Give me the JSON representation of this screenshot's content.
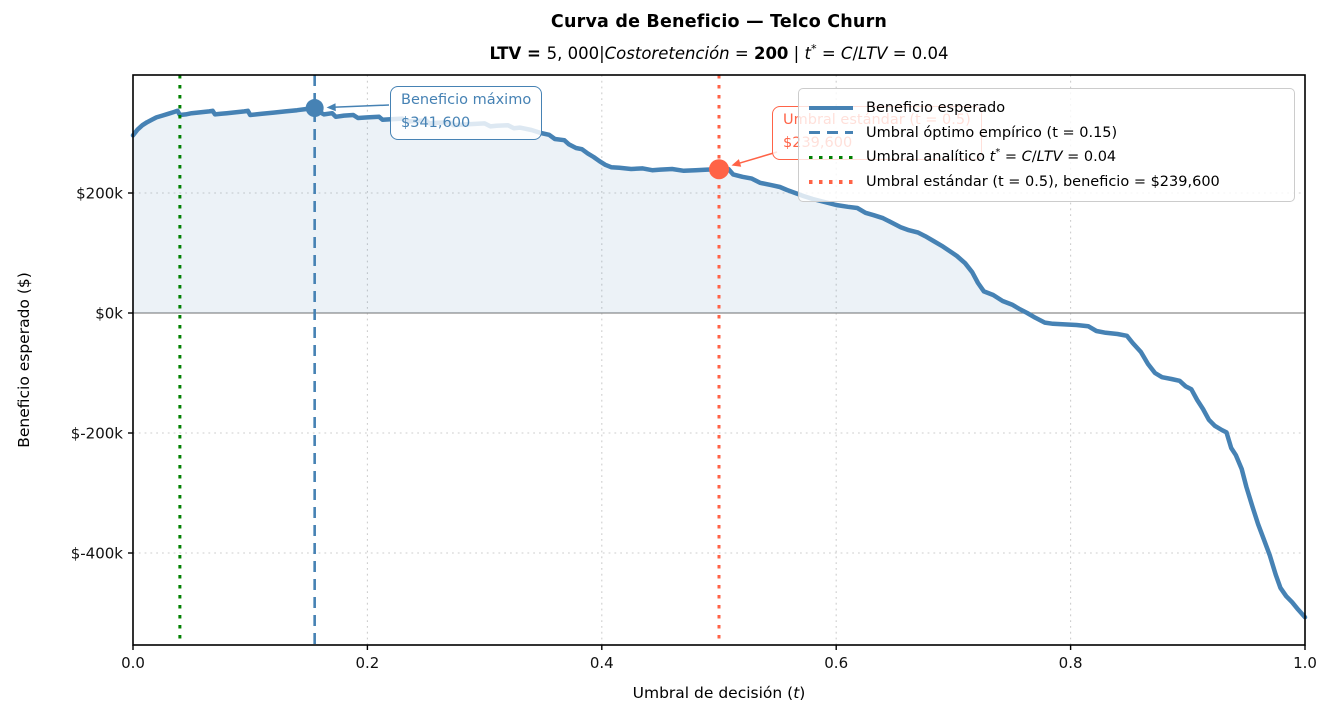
{
  "chart_data": {
    "type": "line",
    "title": "Curva de Beneficio — Telco Churn",
    "subtitle_plain": "LTV = 5,000 | Costo retención = 200  |  t* = C/LTV = 0.04",
    "subtitle_segments": [
      {
        "text": "LTV = ",
        "b": true
      },
      {
        "text": "5, 000"
      },
      {
        "text": "|"
      },
      {
        "text": "Costoretención",
        "i": true
      },
      {
        "text": " = "
      },
      {
        "text": "200",
        "b": true
      },
      {
        "text": "  |  "
      },
      {
        "text": "t",
        "i": true
      },
      {
        "text": "*",
        "sup": true
      },
      {
        "text": " = "
      },
      {
        "text": "C",
        "i": true
      },
      {
        "text": "/"
      },
      {
        "text": "LTV",
        "i": true
      },
      {
        "text": " = 0.04"
      }
    ],
    "xlabel_plain": "Umbral de decisión (t)",
    "xlabel_segments": [
      {
        "text": "Umbral de decisión ("
      },
      {
        "text": "t",
        "i": true
      },
      {
        "text": ")"
      }
    ],
    "ylabel": "Beneficio esperado ($)",
    "xlim": [
      0.0,
      1.0
    ],
    "ylim": [
      -553333,
      396667
    ],
    "grid": true,
    "x_ticks": [
      {
        "value": 0.0,
        "label": "0.0"
      },
      {
        "value": 0.2,
        "label": "0.2"
      },
      {
        "value": 0.4,
        "label": "0.4"
      },
      {
        "value": 0.6,
        "label": "0.6"
      },
      {
        "value": 0.8,
        "label": "0.8"
      },
      {
        "value": 1.0,
        "label": "1.0"
      }
    ],
    "y_ticks": [
      {
        "value": 200000,
        "label": "$200k"
      },
      {
        "value": 0,
        "label": "$0k"
      },
      {
        "value": -200000,
        "label": "$-200k"
      },
      {
        "value": -400000,
        "label": "$-400k"
      }
    ],
    "zero_line": {
      "value": 0,
      "color": "#8c8c8c"
    },
    "series": [
      {
        "name": "Beneficio esperado",
        "color": "#4682B4",
        "fill_color": "rgba(70,130,180,0.10)",
        "points": [
          [
            0.0,
            296000
          ],
          [
            0.004,
            306000
          ],
          [
            0.008,
            313000
          ],
          [
            0.012,
            318000
          ],
          [
            0.016,
            322000
          ],
          [
            0.02,
            326000
          ],
          [
            0.025,
            329000
          ],
          [
            0.03,
            332000
          ],
          [
            0.035,
            335000
          ],
          [
            0.038,
            337000
          ],
          [
            0.04,
            330000
          ],
          [
            0.045,
            331000
          ],
          [
            0.05,
            333000
          ],
          [
            0.055,
            334000
          ],
          [
            0.06,
            335000
          ],
          [
            0.065,
            336000
          ],
          [
            0.068,
            337000
          ],
          [
            0.07,
            331000
          ],
          [
            0.075,
            332000
          ],
          [
            0.08,
            333000
          ],
          [
            0.085,
            334000
          ],
          [
            0.09,
            335000
          ],
          [
            0.095,
            336000
          ],
          [
            0.098,
            337000
          ],
          [
            0.1,
            330000
          ],
          [
            0.105,
            331000
          ],
          [
            0.11,
            332000
          ],
          [
            0.12,
            334000
          ],
          [
            0.13,
            336000
          ],
          [
            0.14,
            338000
          ],
          [
            0.148,
            340000
          ],
          [
            0.155,
            341600
          ],
          [
            0.158,
            336000
          ],
          [
            0.163,
            331000
          ],
          [
            0.17,
            333000
          ],
          [
            0.173,
            327000
          ],
          [
            0.18,
            329000
          ],
          [
            0.188,
            330000
          ],
          [
            0.192,
            325000
          ],
          [
            0.2,
            326000
          ],
          [
            0.21,
            327000
          ],
          [
            0.213,
            322000
          ],
          [
            0.22,
            323000
          ],
          [
            0.23,
            324000
          ],
          [
            0.233,
            319000
          ],
          [
            0.24,
            320000
          ],
          [
            0.25,
            321000
          ],
          [
            0.253,
            316000
          ],
          [
            0.26,
            317000
          ],
          [
            0.27,
            318000
          ],
          [
            0.273,
            313000
          ],
          [
            0.28,
            314000
          ],
          [
            0.29,
            315000
          ],
          [
            0.3,
            316000
          ],
          [
            0.305,
            311000
          ],
          [
            0.31,
            312000
          ],
          [
            0.32,
            313000
          ],
          [
            0.325,
            308000
          ],
          [
            0.33,
            309000
          ],
          [
            0.34,
            305000
          ],
          [
            0.348,
            300000
          ],
          [
            0.355,
            297000
          ],
          [
            0.36,
            290000
          ],
          [
            0.368,
            288000
          ],
          [
            0.372,
            281000
          ],
          [
            0.378,
            275000
          ],
          [
            0.383,
            273000
          ],
          [
            0.388,
            266000
          ],
          [
            0.393,
            260000
          ],
          [
            0.398,
            253000
          ],
          [
            0.403,
            247000
          ],
          [
            0.408,
            243000
          ],
          [
            0.415,
            242000
          ],
          [
            0.425,
            240000
          ],
          [
            0.435,
            241000
          ],
          [
            0.443,
            238000
          ],
          [
            0.45,
            239000
          ],
          [
            0.46,
            240000
          ],
          [
            0.47,
            237000
          ],
          [
            0.48,
            238000
          ],
          [
            0.49,
            239000
          ],
          [
            0.5,
            239600
          ],
          [
            0.508,
            240000
          ],
          [
            0.512,
            231000
          ],
          [
            0.52,
            227000
          ],
          [
            0.528,
            224000
          ],
          [
            0.535,
            217000
          ],
          [
            0.545,
            213000
          ],
          [
            0.552,
            210000
          ],
          [
            0.558,
            205000
          ],
          [
            0.565,
            200000
          ],
          [
            0.572,
            195000
          ],
          [
            0.58,
            190000
          ],
          [
            0.59,
            185000
          ],
          [
            0.6,
            180000
          ],
          [
            0.61,
            177000
          ],
          [
            0.618,
            175000
          ],
          [
            0.625,
            167000
          ],
          [
            0.632,
            163000
          ],
          [
            0.64,
            158000
          ],
          [
            0.648,
            150000
          ],
          [
            0.655,
            143000
          ],
          [
            0.662,
            138000
          ],
          [
            0.67,
            134000
          ],
          [
            0.676,
            128000
          ],
          [
            0.683,
            120000
          ],
          [
            0.69,
            112000
          ],
          [
            0.697,
            103000
          ],
          [
            0.703,
            95000
          ],
          [
            0.71,
            83000
          ],
          [
            0.716,
            68000
          ],
          [
            0.721,
            50000
          ],
          [
            0.726,
            36000
          ],
          [
            0.734,
            30000
          ],
          [
            0.742,
            20000
          ],
          [
            0.75,
            14000
          ],
          [
            0.757,
            6000
          ],
          [
            0.763,
            0
          ],
          [
            0.77,
            -8000
          ],
          [
            0.778,
            -16000
          ],
          [
            0.785,
            -18000
          ],
          [
            0.795,
            -19000
          ],
          [
            0.805,
            -20000
          ],
          [
            0.815,
            -22000
          ],
          [
            0.822,
            -30000
          ],
          [
            0.83,
            -33000
          ],
          [
            0.84,
            -35000
          ],
          [
            0.848,
            -38000
          ],
          [
            0.853,
            -50000
          ],
          [
            0.86,
            -65000
          ],
          [
            0.866,
            -85000
          ],
          [
            0.872,
            -100000
          ],
          [
            0.878,
            -107000
          ],
          [
            0.886,
            -110000
          ],
          [
            0.893,
            -113000
          ],
          [
            0.898,
            -122000
          ],
          [
            0.903,
            -127000
          ],
          [
            0.908,
            -145000
          ],
          [
            0.913,
            -160000
          ],
          [
            0.918,
            -178000
          ],
          [
            0.923,
            -188000
          ],
          [
            0.929,
            -195000
          ],
          [
            0.933,
            -199000
          ],
          [
            0.937,
            -225000
          ],
          [
            0.941,
            -237000
          ],
          [
            0.946,
            -260000
          ],
          [
            0.95,
            -290000
          ],
          [
            0.955,
            -322000
          ],
          [
            0.96,
            -352000
          ],
          [
            0.965,
            -378000
          ],
          [
            0.97,
            -404000
          ],
          [
            0.975,
            -436000
          ],
          [
            0.979,
            -458000
          ],
          [
            0.984,
            -472000
          ],
          [
            0.989,
            -482000
          ],
          [
            0.994,
            -494000
          ],
          [
            1.0,
            -507000
          ]
        ]
      }
    ],
    "vlines": [
      {
        "id": "optimal",
        "x": 0.155,
        "color": "#4682B4",
        "style": "dashed",
        "label": "Umbral óptimo empírico (t = 0.15)"
      },
      {
        "id": "analytic",
        "x": 0.04,
        "color": "#008000",
        "style": "dotted",
        "label": "Umbral analítico t* = C/LTV = 0.04"
      },
      {
        "id": "standard",
        "x": 0.5,
        "color": "#FF6347",
        "style": "dotted",
        "label": "Umbral estándar (t = 0.5), beneficio = $239,600"
      }
    ],
    "markers": [
      {
        "id": "max",
        "t": 0.155,
        "profit": 341600,
        "color": "#4682B4",
        "radius": 9
      },
      {
        "id": "standard",
        "t": 0.5,
        "profit": 239600,
        "color": "#FF6347",
        "radius": 10
      }
    ],
    "annotations": [
      {
        "id": "max",
        "line1": "Beneficio máximo",
        "line2": "$341,600",
        "color": "#4682B4",
        "target_t": 0.155,
        "target_profit": 341600
      },
      {
        "id": "standard",
        "line1": "Umbral estándar (t = 0.5)",
        "line2": "$239,600",
        "color": "#FF6347",
        "target_t": 0.5,
        "target_profit": 239600
      }
    ],
    "legend": {
      "position": "upper right",
      "entries": [
        {
          "label": "Beneficio esperado",
          "color": "#4682B4",
          "line": "solid"
        },
        {
          "label": "Umbral óptimo empírico (t = 0.15)",
          "color": "#4682B4",
          "line": "dashed"
        },
        {
          "label": "Umbral analítico t* = C/LTV = 0.04",
          "color": "#008000",
          "line": "dotted",
          "label_segments": [
            {
              "text": "Umbral analítico "
            },
            {
              "text": "t",
              "i": true
            },
            {
              "text": "*",
              "sup": true
            },
            {
              "text": " = "
            },
            {
              "text": "C",
              "i": true
            },
            {
              "text": "/"
            },
            {
              "text": "LTV",
              "i": true
            },
            {
              "text": " = 0.04"
            }
          ]
        },
        {
          "label": "Umbral estándar (t = 0.5), beneficio = $239,600",
          "color": "#FF6347",
          "line": "dotted"
        }
      ]
    }
  }
}
